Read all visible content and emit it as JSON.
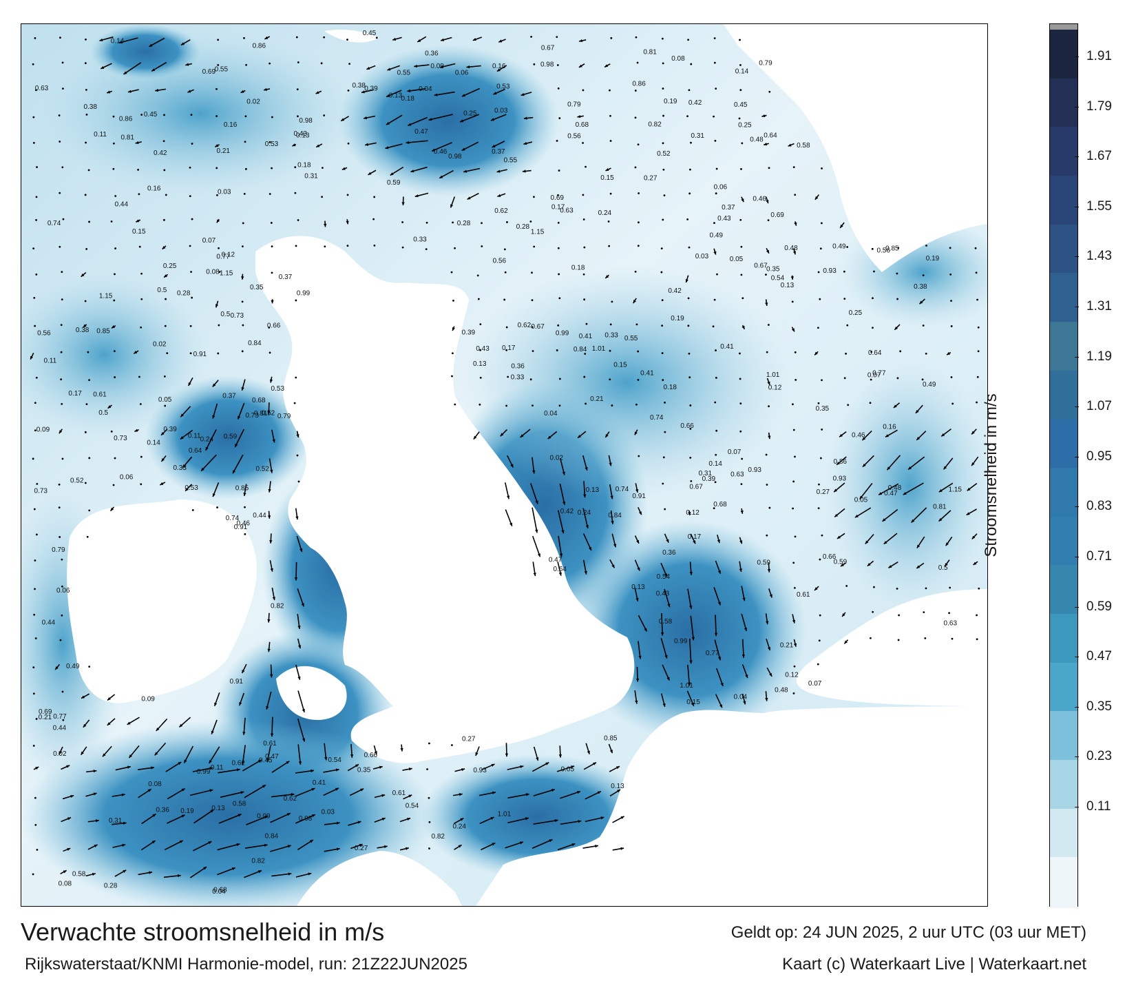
{
  "title": "Verwachte stroomsnelheid in m/s",
  "subtitle": "Rijkswaterstaat/KNMI Harmonie-model, run: 21Z22JUN2025",
  "valid_time": "Geldt op: 24 JUN 2025, 2 uur UTC (03 uur MET)",
  "copyright": "Kaart (c) Waterkaart Live | Waterkaart.net",
  "legend": {
    "title": "Stroomsnelheid in m/s",
    "ticks": [
      "1.91",
      "1.79",
      "1.67",
      "1.55",
      "1.43",
      "1.31",
      "1.19",
      "1.07",
      "0.95",
      "0.83",
      "0.71",
      "0.59",
      "0.47",
      "0.35",
      "0.23",
      "0.11"
    ],
    "colors": [
      "#1b2540",
      "#232f55",
      "#283a6a",
      "#2a4678",
      "#2c5383",
      "#2e6190",
      "#3c7896",
      "#2f6f9a",
      "#2d6ea8",
      "#3079ad",
      "#337eb0",
      "#3687ae",
      "#3d98bd",
      "#4aa7c9",
      "#7dc0db",
      "#a9d6e7",
      "#d3e9f2",
      "#eef6fa"
    ],
    "cap_color": "#9a9a9a"
  },
  "map": {
    "land_color": "#ffffff",
    "water_colors": {
      "calm": "#e8f4f9",
      "light": "#b7dcec",
      "medium": "#5aaed0",
      "strong": "#2f7fb4",
      "very_strong": "#235f93"
    },
    "speed_labels": [
      {
        "v": "0.13"
      },
      {
        "v": "0.14"
      },
      {
        "v": "0.12"
      },
      {
        "v": "0.16"
      },
      {
        "v": "0.17"
      },
      {
        "v": "0.09"
      },
      {
        "v": "0.11"
      },
      {
        "v": "0.25"
      },
      {
        "v": "0.27"
      },
      {
        "v": "0.18"
      },
      {
        "v": "0.21"
      },
      {
        "v": "0.19"
      },
      {
        "v": "0.15"
      },
      {
        "v": "0.24"
      },
      {
        "v": "0.56"
      },
      {
        "v": "0.43"
      },
      {
        "v": "0.37"
      },
      {
        "v": "0.28"
      },
      {
        "v": "0.13"
      },
      {
        "v": "0.08"
      },
      {
        "v": "0.05"
      },
      {
        "v": "0.06"
      },
      {
        "v": "0.07"
      },
      {
        "v": "0.04"
      },
      {
        "v": "0.03"
      },
      {
        "v": "0.02"
      },
      {
        "v": "0.81"
      },
      {
        "v": "0.91"
      },
      {
        "v": "0.86"
      },
      {
        "v": "0.59"
      },
      {
        "v": "0.77"
      },
      {
        "v": "0.79"
      },
      {
        "v": "0.73"
      },
      {
        "v": "0.85"
      },
      {
        "v": "0.82"
      },
      {
        "v": "0.69"
      },
      {
        "v": "0.93"
      },
      {
        "v": "0.84"
      },
      {
        "v": "0.64"
      },
      {
        "v": "0.68"
      },
      {
        "v": "0.67"
      },
      {
        "v": "0.54"
      },
      {
        "v": "0.46"
      },
      {
        "v": "0.33"
      },
      {
        "v": "0.35"
      },
      {
        "v": "0.36"
      },
      {
        "v": "0.31"
      },
      {
        "v": "0.38"
      },
      {
        "v": "0.44"
      },
      {
        "v": "1.15"
      },
      {
        "v": "1.01"
      },
      {
        "v": "0.98"
      },
      {
        "v": "0.99"
      },
      {
        "v": "0.74"
      },
      {
        "v": "0.62"
      },
      {
        "v": "0.55"
      },
      {
        "v": "0.45"
      },
      {
        "v": "0.41"
      },
      {
        "v": "0.39"
      },
      {
        "v": "0.66"
      },
      {
        "v": "0.63"
      },
      {
        "v": "0.53"
      },
      {
        "v": "0.48"
      },
      {
        "v": "0.5"
      },
      {
        "v": "0.47"
      },
      {
        "v": "0.42"
      },
      {
        "v": "0.49"
      },
      {
        "v": "0.61"
      },
      {
        "v": "0.58"
      },
      {
        "v": "0.52"
      }
    ]
  }
}
